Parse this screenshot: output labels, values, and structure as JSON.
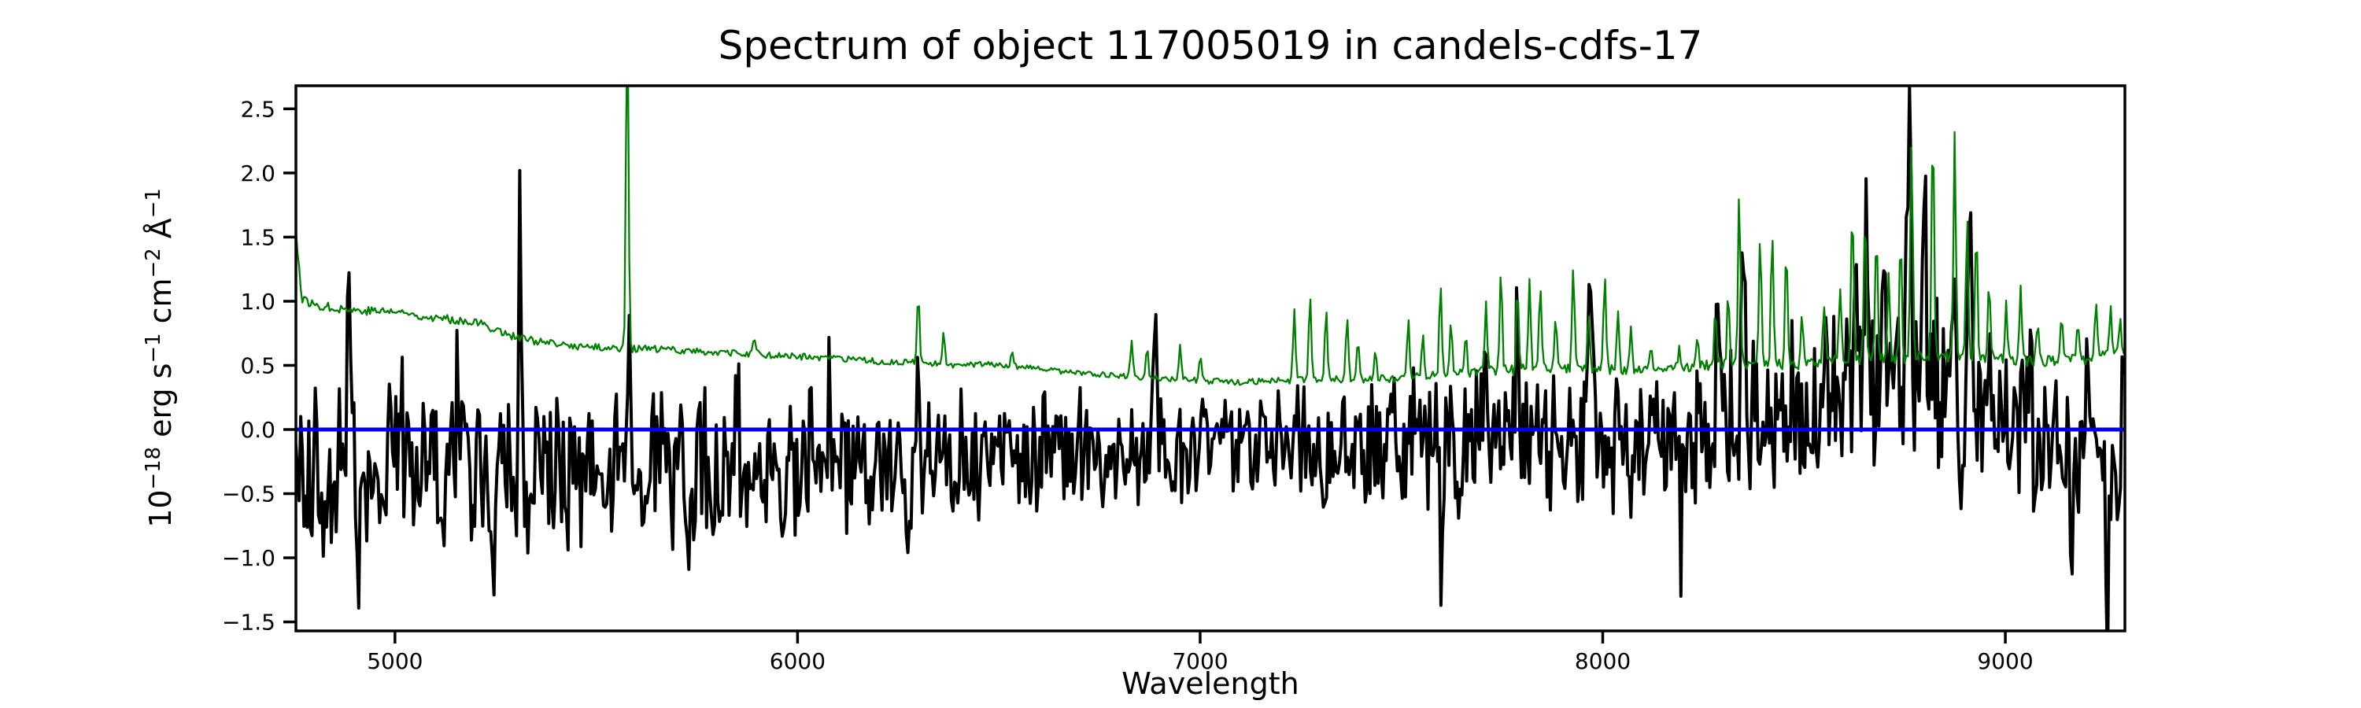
{
  "figure": {
    "background": "#ffffff"
  },
  "chart_data": {
    "type": "line",
    "title": "Spectrum of object 117005019 in candels-cdfs-17",
    "xlabel": "Wavelength",
    "ylabel": "10⁻¹⁸ erg s⁻¹ cm⁻² Å⁻¹",
    "ylabel_parts": [
      {
        "t": "10"
      },
      {
        "t": "−18",
        "sup": true
      },
      {
        "t": " erg s"
      },
      {
        "t": "−1",
        "sup": true
      },
      {
        "t": " cm"
      },
      {
        "t": "−2",
        "sup": true
      },
      {
        "t": " Å"
      },
      {
        "t": "−1",
        "sup": true
      }
    ],
    "xlim": [
      4754,
      9297
    ],
    "ylim": [
      -1.57,
      2.68
    ],
    "xticks": [
      {
        "v": 5000,
        "label": "5000"
      },
      {
        "v": 6000,
        "label": "6000"
      },
      {
        "v": 7000,
        "label": "7000"
      },
      {
        "v": 8000,
        "label": "8000"
      },
      {
        "v": 9000,
        "label": "9000"
      }
    ],
    "yticks": [
      {
        "v": -1.5,
        "label": "−1.5"
      },
      {
        "v": -1.0,
        "label": "−1.0"
      },
      {
        "v": -0.5,
        "label": "−0.5"
      },
      {
        "v": 0.0,
        "label": "0.0"
      },
      {
        "v": 0.5,
        "label": "0.5"
      },
      {
        "v": 1.0,
        "label": "1.0"
      },
      {
        "v": 1.5,
        "label": "1.5"
      },
      {
        "v": 2.0,
        "label": "2.0"
      },
      {
        "v": 2.5,
        "label": "2.5"
      }
    ],
    "grid": false,
    "legend": null,
    "axis_color": "#000000",
    "series": [
      {
        "name": "flux",
        "role": "observed flux spectrum (black jagged line)",
        "color": "#000000",
        "linewidth": 4,
        "style": "noisy",
        "noise": "wide",
        "seed": 20,
        "step": 4,
        "mean_knots": [
          [
            4754,
            -0.32
          ],
          [
            5000,
            -0.32
          ],
          [
            5400,
            -0.32
          ],
          [
            5800,
            -0.3
          ],
          [
            6200,
            -0.25
          ],
          [
            6600,
            -0.18
          ],
          [
            7000,
            -0.14
          ],
          [
            7300,
            -0.16
          ],
          [
            7600,
            -0.1
          ],
          [
            7800,
            -0.05
          ],
          [
            8000,
            -0.08
          ],
          [
            8200,
            -0.05
          ],
          [
            8350,
            0.08
          ],
          [
            8500,
            0.15
          ],
          [
            8600,
            0.3
          ],
          [
            8750,
            0.4
          ],
          [
            8900,
            0.28
          ],
          [
            9000,
            0.1
          ],
          [
            9100,
            -0.05
          ],
          [
            9200,
            -0.2
          ],
          [
            9297,
            -0.1
          ]
        ],
        "amp_knots": [
          [
            4754,
            0.52
          ],
          [
            5000,
            0.48
          ],
          [
            5500,
            0.45
          ],
          [
            6000,
            0.42
          ],
          [
            6400,
            0.38
          ],
          [
            6800,
            0.34
          ],
          [
            7200,
            0.35
          ],
          [
            7500,
            0.4
          ],
          [
            7700,
            0.46
          ],
          [
            8000,
            0.48
          ],
          [
            8200,
            0.42
          ],
          [
            8400,
            0.48
          ],
          [
            8600,
            0.52
          ],
          [
            8800,
            0.55
          ],
          [
            9000,
            0.5
          ],
          [
            9297,
            0.5
          ]
        ],
        "peaks": [
          [
            4885,
            1.35,
            4
          ],
          [
            4988,
            1.1,
            4
          ],
          [
            5014,
            0.95,
            4
          ],
          [
            5158,
            0.8,
            4
          ],
          [
            5311,
            1.95,
            3.5
          ],
          [
            5581,
            1.25,
            3.5
          ],
          [
            5850,
            0.6,
            4
          ],
          [
            6080,
            0.55,
            4
          ],
          [
            6300,
            0.65,
            3.5
          ],
          [
            6887,
            0.85,
            4
          ],
          [
            7005,
            0.8,
            4
          ],
          [
            7240,
            0.6,
            4
          ],
          [
            7710,
            1.1,
            4
          ],
          [
            7788,
            1.0,
            4
          ],
          [
            7930,
            0.85,
            4
          ],
          [
            7968,
            1.55,
            5
          ],
          [
            8284,
            0.85,
            4
          ],
          [
            8350,
            1.8,
            4
          ],
          [
            8625,
            0.95,
            4
          ],
          [
            8655,
            1.5,
            4
          ],
          [
            8700,
            1.1,
            4
          ],
          [
            8760,
            2.05,
            5
          ],
          [
            8800,
            1.3,
            4
          ],
          [
            8870,
            1.1,
            4
          ],
          [
            8912,
            1.85,
            4
          ],
          [
            9060,
            0.85,
            4
          ],
          [
            9205,
            0.95,
            4
          ],
          [
            4830,
            -0.9,
            4
          ],
          [
            4912,
            -0.8,
            4
          ],
          [
            5120,
            -1.0,
            4
          ],
          [
            5243,
            -1.0,
            4
          ],
          [
            5727,
            -0.9,
            4
          ],
          [
            6275,
            -0.85,
            3.5
          ],
          [
            7600,
            -0.8,
            5
          ],
          [
            7933,
            -0.9,
            4
          ],
          [
            8196,
            -0.75,
            4
          ],
          [
            8890,
            -1.3,
            4
          ],
          [
            9165,
            -1.05,
            4
          ],
          [
            9255,
            -1.2,
            4
          ]
        ]
      },
      {
        "name": "error",
        "role": "noise / error spectrum (green line with sky-line spikes)",
        "color": "#008000",
        "linewidth": 2.3,
        "style": "noisy",
        "noise": "uniform",
        "seed": 77,
        "step": 4,
        "mean_knots": [
          [
            4754,
            1.57
          ],
          [
            4768,
            1.02
          ],
          [
            4800,
            0.97
          ],
          [
            4850,
            0.95
          ],
          [
            4900,
            0.93
          ],
          [
            5000,
            0.92
          ],
          [
            5100,
            0.87
          ],
          [
            5200,
            0.84
          ],
          [
            5300,
            0.72
          ],
          [
            5400,
            0.66
          ],
          [
            5500,
            0.64
          ],
          [
            5600,
            0.63
          ],
          [
            5700,
            0.62
          ],
          [
            5800,
            0.6
          ],
          [
            5900,
            0.58
          ],
          [
            6000,
            0.57
          ],
          [
            6100,
            0.55
          ],
          [
            6200,
            0.53
          ],
          [
            6300,
            0.52
          ],
          [
            6400,
            0.5
          ],
          [
            6500,
            0.51
          ],
          [
            6600,
            0.47
          ],
          [
            6700,
            0.44
          ],
          [
            6800,
            0.42
          ],
          [
            6900,
            0.4
          ],
          [
            7000,
            0.38
          ],
          [
            7100,
            0.37
          ],
          [
            7200,
            0.38
          ],
          [
            7300,
            0.39
          ],
          [
            7400,
            0.39
          ],
          [
            7500,
            0.4
          ],
          [
            7600,
            0.43
          ],
          [
            7700,
            0.45
          ],
          [
            7800,
            0.47
          ],
          [
            7900,
            0.47
          ],
          [
            8000,
            0.47
          ],
          [
            8100,
            0.46
          ],
          [
            8200,
            0.48
          ],
          [
            8300,
            0.52
          ],
          [
            8400,
            0.52
          ],
          [
            8500,
            0.5
          ],
          [
            8600,
            0.54
          ],
          [
            8700,
            0.55
          ],
          [
            8800,
            0.57
          ],
          [
            8900,
            0.57
          ],
          [
            9000,
            0.54
          ],
          [
            9100,
            0.53
          ],
          [
            9200,
            0.55
          ],
          [
            9297,
            0.62
          ]
        ],
        "amp_knots": [
          [
            4754,
            0.035
          ],
          [
            5500,
            0.03
          ],
          [
            6200,
            0.025
          ],
          [
            6700,
            0.02
          ],
          [
            7200,
            0.025
          ],
          [
            7500,
            0.03
          ],
          [
            7700,
            0.045
          ],
          [
            8100,
            0.035
          ],
          [
            8300,
            0.045
          ],
          [
            8600,
            0.05
          ],
          [
            8900,
            0.05
          ],
          [
            9100,
            0.045
          ],
          [
            9297,
            0.05
          ]
        ],
        "peaks": [
          [
            5577,
            2.8,
            3
          ],
          [
            5893,
            0.14,
            4
          ],
          [
            6300,
            0.55,
            3
          ],
          [
            6363,
            0.28,
            3
          ],
          [
            6533,
            0.12,
            3
          ],
          [
            6830,
            0.3,
            3
          ],
          [
            6868,
            0.24,
            3
          ],
          [
            6950,
            0.25,
            3
          ],
          [
            7000,
            0.2,
            3
          ],
          [
            7234,
            0.55,
            3
          ],
          [
            7273,
            0.67,
            3
          ],
          [
            7313,
            0.56,
            3
          ],
          [
            7365,
            0.5,
            3
          ],
          [
            7392,
            0.34,
            3
          ],
          [
            7435,
            0.22,
            3
          ],
          [
            7517,
            0.46,
            3
          ],
          [
            7553,
            0.35,
            3
          ],
          [
            7597,
            0.72,
            3
          ],
          [
            7623,
            0.44,
            3
          ],
          [
            7660,
            0.3,
            3
          ],
          [
            7710,
            0.58,
            3
          ],
          [
            7747,
            0.8,
            3
          ],
          [
            7788,
            0.62,
            3
          ],
          [
            7818,
            0.68,
            3
          ],
          [
            7845,
            0.66,
            3
          ],
          [
            7883,
            0.42,
            3
          ],
          [
            7927,
            0.85,
            3
          ],
          [
            7965,
            0.4,
            3
          ],
          [
            8005,
            0.72,
            3
          ],
          [
            8038,
            0.46,
            3
          ],
          [
            8070,
            0.34,
            3
          ],
          [
            8120,
            0.2,
            3
          ],
          [
            8190,
            0.2,
            3
          ],
          [
            8235,
            0.26,
            3
          ],
          [
            8280,
            0.4,
            3
          ],
          [
            8312,
            0.55,
            3
          ],
          [
            8339,
            1.3,
            3
          ],
          [
            8391,
            1.0,
            3
          ],
          [
            8421,
            1.05,
            3
          ],
          [
            8456,
            0.9,
            3
          ],
          [
            8495,
            0.35,
            3
          ],
          [
            8550,
            0.45,
            3
          ],
          [
            8590,
            0.6,
            3
          ],
          [
            8620,
            1.25,
            3
          ],
          [
            8652,
            1.15,
            3
          ],
          [
            8680,
            1.0,
            3
          ],
          [
            8710,
            0.68,
            3
          ],
          [
            8740,
            0.9,
            3
          ],
          [
            8767,
            1.75,
            3
          ],
          [
            8820,
            1.85,
            3
          ],
          [
            8874,
            1.7,
            3
          ],
          [
            8905,
            1.1,
            3
          ],
          [
            8928,
            1.0,
            3
          ],
          [
            8960,
            0.6,
            3
          ],
          [
            9002,
            0.45,
            3
          ],
          [
            9038,
            0.55,
            3
          ],
          [
            9080,
            0.3,
            3
          ],
          [
            9140,
            0.35,
            3
          ],
          [
            9180,
            0.3,
            3
          ],
          [
            9225,
            0.42,
            3
          ],
          [
            9262,
            0.32,
            3
          ],
          [
            9285,
            0.25,
            3
          ]
        ]
      },
      {
        "name": "zero_line",
        "role": "horizontal reference line at zero flux",
        "color": "#0000ee",
        "linewidth": 5,
        "style": "hline",
        "y": 0
      }
    ]
  }
}
